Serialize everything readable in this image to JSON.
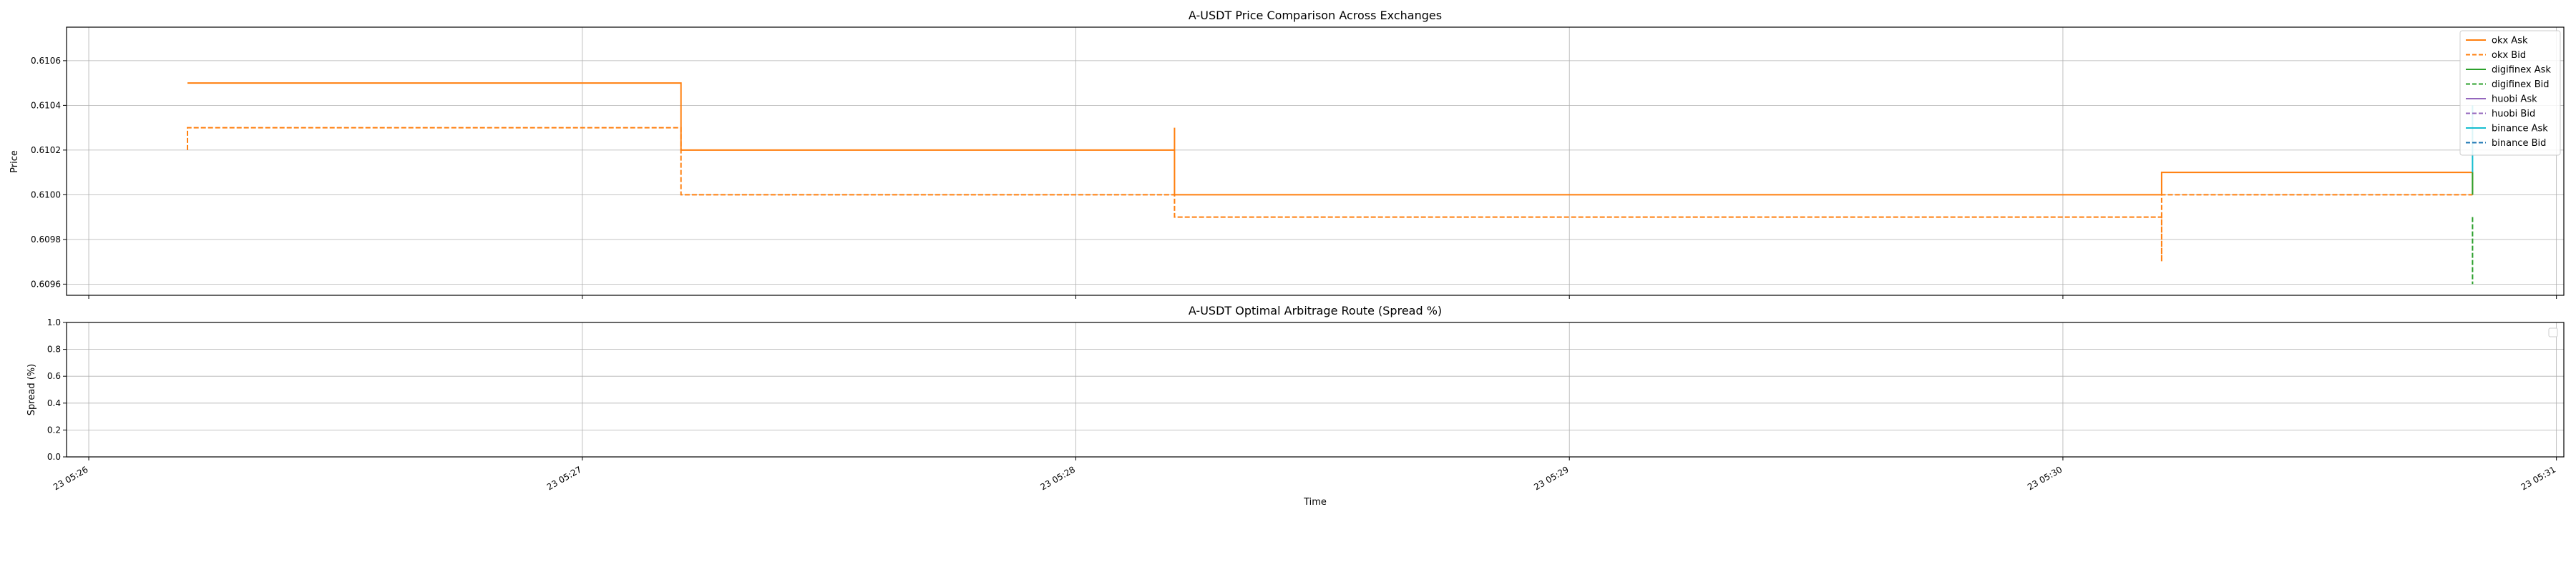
{
  "chart_data": [
    {
      "type": "line",
      "title": "A-USDT Price Comparison Across Exchanges",
      "xlabel": "",
      "ylabel": "Price",
      "xlim_min": [
        5.217,
        5.525
      ],
      "ylim": [
        0.60955,
        0.61075
      ],
      "yticks": [
        "0.6096",
        "0.6098",
        "0.6100",
        "0.6102",
        "0.6104",
        "0.6106"
      ],
      "ytick_values": [
        0.6096,
        0.6098,
        0.61,
        0.6102,
        0.6104,
        0.6106
      ],
      "grid": true,
      "legend_position": "upper-right",
      "x_unit": "minutes past 05:00 on day 23",
      "series": [
        {
          "name": "okx Ask",
          "color": "#ff7f0e",
          "dash": "solid",
          "points": [
            [
              26.2,
              0.6105
            ],
            [
              27.2,
              0.6105
            ],
            [
              27.2,
              0.6102
            ],
            [
              28.2,
              0.6102
            ],
            [
              28.2,
              0.6103
            ],
            [
              28.2,
              0.61
            ],
            [
              30.2,
              0.61
            ],
            [
              30.2,
              0.6101
            ],
            [
              30.83,
              0.6101
            ],
            [
              30.83,
              0.61
            ]
          ]
        },
        {
          "name": "okx Bid",
          "color": "#ff7f0e",
          "dash": "dashed",
          "points": [
            [
              26.2,
              0.6102
            ],
            [
              26.2,
              0.6103
            ],
            [
              27.2,
              0.6103
            ],
            [
              27.2,
              0.6101
            ],
            [
              27.2,
              0.61
            ],
            [
              28.2,
              0.61
            ],
            [
              28.2,
              0.6099
            ],
            [
              30.2,
              0.6099
            ],
            [
              30.2,
              0.6097
            ],
            [
              30.2,
              0.61
            ],
            [
              30.83,
              0.61
            ]
          ]
        },
        {
          "name": "digifinex Ask",
          "color": "#2ca02c",
          "dash": "solid",
          "points": [
            [
              30.83,
              0.6101
            ],
            [
              30.83,
              0.61
            ]
          ]
        },
        {
          "name": "digifinex Bid",
          "color": "#2ca02c",
          "dash": "dashed",
          "points": [
            [
              30.83,
              0.6099
            ],
            [
              30.83,
              0.6096
            ]
          ]
        },
        {
          "name": "huobi Ask",
          "color": "#9467bd",
          "dash": "solid",
          "points": []
        },
        {
          "name": "huobi Bid",
          "color": "#9467bd",
          "dash": "dashed",
          "points": []
        },
        {
          "name": "binance Ask",
          "color": "#17becf",
          "dash": "solid",
          "points": [
            [
              30.83,
              0.6104
            ],
            [
              30.83,
              0.6101
            ]
          ]
        },
        {
          "name": "binance Bid",
          "color": "#1f77b4",
          "dash": "dashed",
          "points": []
        }
      ]
    },
    {
      "type": "line",
      "title": "A-USDT Optimal Arbitrage Route (Spread %)",
      "xlabel": "Time",
      "ylabel": "Spread (%)",
      "ylim": [
        0.0,
        1.0
      ],
      "yticks": [
        "0.0",
        "0.2",
        "0.4",
        "0.6",
        "0.8",
        "1.0"
      ],
      "ytick_values": [
        0.0,
        0.2,
        0.4,
        0.6,
        0.8,
        1.0
      ],
      "grid": true,
      "legend_position": "upper-right",
      "series": []
    }
  ],
  "xaxis": {
    "range_minutes": [
      25.955,
      31.015
    ],
    "ticks": [
      {
        "label": "23 05:26",
        "value": 26
      },
      {
        "label": "23 05:27",
        "value": 27
      },
      {
        "label": "23 05:28",
        "value": 28
      },
      {
        "label": "23 05:29",
        "value": 29
      },
      {
        "label": "23 05:30",
        "value": 30
      },
      {
        "label": "23 05:31",
        "value": 31
      }
    ]
  }
}
